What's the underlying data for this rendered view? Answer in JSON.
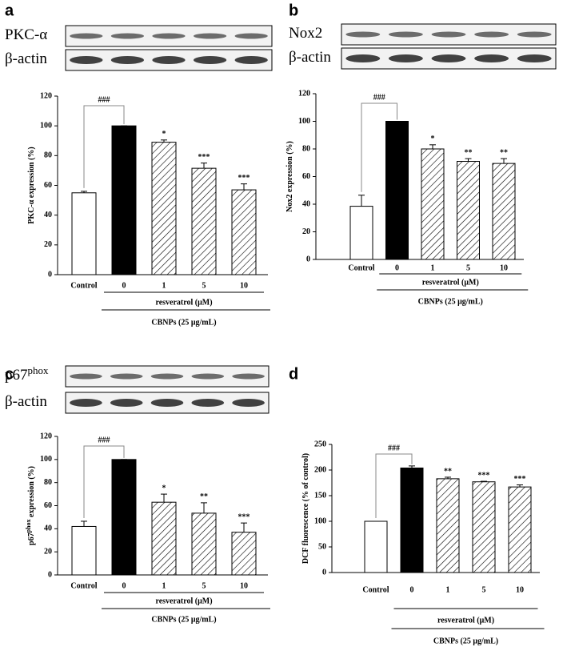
{
  "chart_data": [
    {
      "type": "bar",
      "panel": "a",
      "blots": [
        {
          "label": "PKC-α"
        },
        {
          "label": "β-actin"
        }
      ],
      "ylabel": "PKC-α expression (%)",
      "categories": [
        "Control",
        "0",
        "1",
        "5",
        "10"
      ],
      "values": [
        55,
        100,
        89,
        71.5,
        57
      ],
      "errors": [
        1,
        0,
        1.5,
        3.5,
        4
      ],
      "bar_styles": [
        "open",
        "solid",
        "hatched",
        "hatched",
        "hatched"
      ],
      "significance": [
        null,
        null,
        "*",
        "***",
        "***"
      ],
      "bracket_label": "###",
      "group_labels": [
        "resveratrol (μM)",
        "CBNPs (25 μg/mL)"
      ],
      "ylim": [
        0,
        120
      ],
      "yticks": [
        0,
        20,
        40,
        60,
        80,
        100,
        120
      ]
    },
    {
      "type": "bar",
      "panel": "b",
      "blots": [
        {
          "label": "Nox2"
        },
        {
          "label": "β-actin"
        }
      ],
      "ylabel": "Nox2 expression (%)",
      "categories": [
        "Control",
        "0",
        "1",
        "5",
        "10"
      ],
      "values": [
        38.5,
        100,
        80,
        71,
        69.5
      ],
      "errors": [
        8,
        0,
        3,
        2,
        3.5
      ],
      "bar_styles": [
        "open",
        "solid",
        "hatched",
        "hatched",
        "hatched"
      ],
      "significance": [
        null,
        null,
        "*",
        "**",
        "**"
      ],
      "bracket_label": "###",
      "group_labels": [
        "resveratrol (μM)",
        "CBNPs (25 μg/mL)"
      ],
      "ylim": [
        0,
        120
      ],
      "yticks": [
        0,
        20,
        40,
        60,
        80,
        100,
        120
      ]
    },
    {
      "type": "bar",
      "panel": "c",
      "blots": [
        {
          "label": "p67",
          "label_sup": "phox"
        },
        {
          "label": "β-actin"
        }
      ],
      "ylabel": "p67",
      "ylabel_sup": "phox",
      "ylabel_rest": " expression (%)",
      "categories": [
        "Control",
        "0",
        "1",
        "5",
        "10"
      ],
      "values": [
        42,
        100,
        63,
        53.5,
        37
      ],
      "errors": [
        4.5,
        0,
        7,
        9,
        8
      ],
      "bar_styles": [
        "open",
        "solid",
        "hatched",
        "hatched",
        "hatched"
      ],
      "significance": [
        null,
        null,
        "*",
        "**",
        "***"
      ],
      "bracket_label": "###",
      "group_labels": [
        "resveratrol (μM)",
        "CBNPs (25 μg/mL)"
      ],
      "ylim": [
        0,
        120
      ],
      "yticks": [
        0,
        20,
        40,
        60,
        80,
        100,
        120
      ]
    },
    {
      "type": "bar",
      "panel": "d",
      "ylabel": "DCF fluorescence (% of control)",
      "categories": [
        "Control",
        "0",
        "1",
        "5",
        "10"
      ],
      "values": [
        100,
        204,
        183,
        177,
        167
      ],
      "errors": [
        0,
        4,
        3,
        1,
        4
      ],
      "bar_styles": [
        "open",
        "solid",
        "hatched",
        "hatched",
        "hatched"
      ],
      "significance": [
        null,
        null,
        "**",
        "***",
        "***"
      ],
      "bracket_label": "###",
      "group_labels": [
        "resveratrol (μM)",
        "CBNPs (25 μg/mL)"
      ],
      "ylim": [
        0,
        250
      ],
      "yticks": [
        0,
        50,
        100,
        150,
        200,
        250
      ]
    }
  ]
}
